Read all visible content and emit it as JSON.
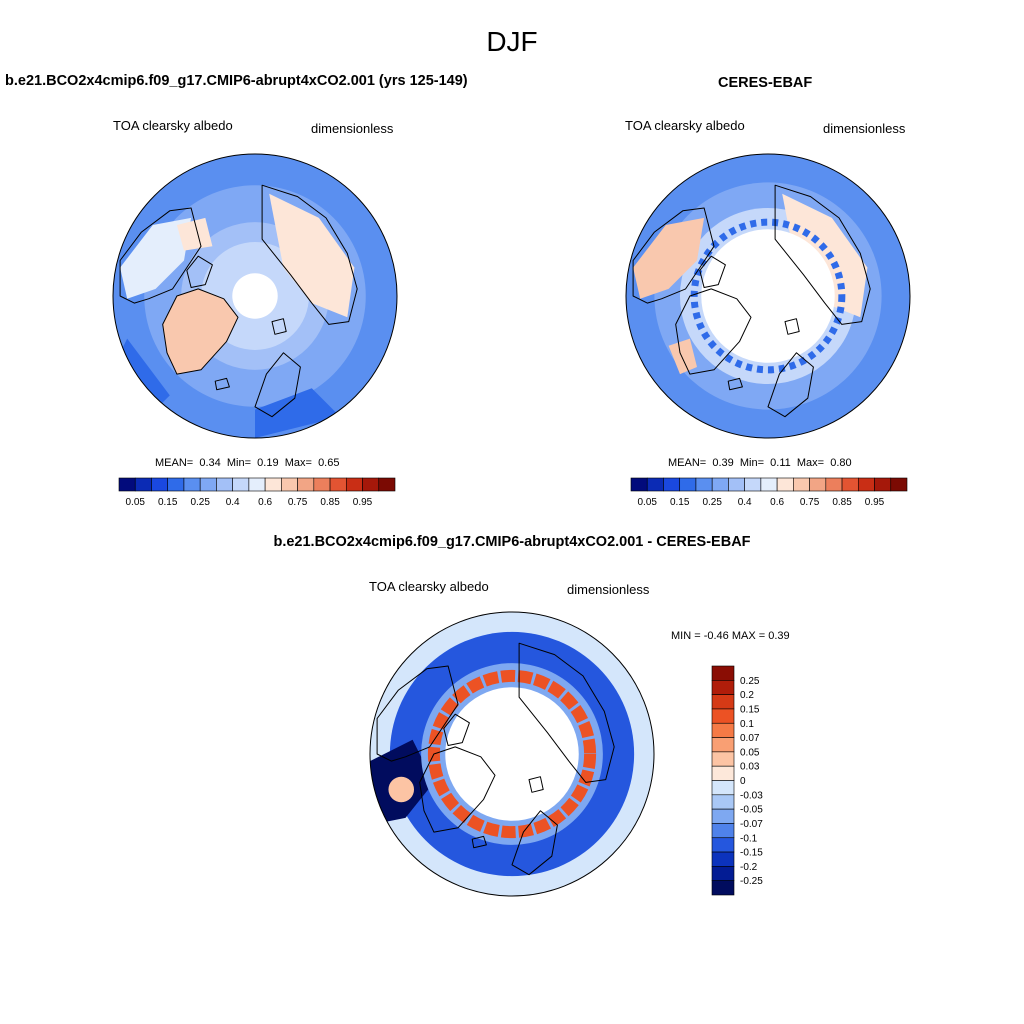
{
  "season": "DJF",
  "panels": [
    {
      "id": "model",
      "title": "b.e21.BCO2x4cmip6.f09_g17.CMIP6-abrupt4xCO2.001 (yrs 125-149)",
      "left_label": "TOA clearsky albedo",
      "right_label": "dimensionless",
      "stats": {
        "mean_label": "MEAN=",
        "mean": "0.34",
        "min_label": "Min=",
        "min": "0.19",
        "max_label": "Max=",
        "max": "0.65"
      }
    },
    {
      "id": "obs",
      "title": "CERES-EBAF",
      "left_label": "TOA clearsky albedo",
      "right_label": "dimensionless",
      "stats": {
        "mean_label": "MEAN=",
        "mean": "0.39",
        "min_label": "Min=",
        "min": "0.11",
        "max_label": "Max=",
        "max": "0.80"
      }
    },
    {
      "id": "diff",
      "title": "b.e21.BCO2x4cmip6.f09_g17.CMIP6-abrupt4xCO2.001 - CERES-EBAF",
      "left_label": "TOA clearsky albedo",
      "right_label": "dimensionless",
      "minmax": "MIN =  -0.46 MAX =   0.39"
    }
  ],
  "chart_data": [
    {
      "type": "heatmap",
      "projection": "north polar stereographic",
      "title": "b.e21.BCO2x4cmip6.f09_g17.CMIP6-abrupt4xCO2.001 (yrs 125-149)",
      "variable": "TOA clearsky albedo",
      "units": "dimensionless",
      "mean": 0.34,
      "min": 0.19,
      "max": 0.65,
      "colorbar_ticks": [
        "0.05",
        "0.15",
        "0.25",
        "0.4",
        "0.6",
        "0.75",
        "0.85",
        "0.95"
      ],
      "colorbar_levels": [
        0.05,
        0.1,
        0.15,
        0.2,
        0.25,
        0.3,
        0.35,
        0.4,
        0.5,
        0.6,
        0.65,
        0.7,
        0.75,
        0.8,
        0.85,
        0.9,
        0.95
      ]
    },
    {
      "type": "heatmap",
      "projection": "north polar stereographic",
      "title": "CERES-EBAF",
      "variable": "TOA clearsky albedo",
      "units": "dimensionless",
      "mean": 0.39,
      "min": 0.11,
      "max": 0.8,
      "colorbar_ticks": [
        "0.05",
        "0.15",
        "0.25",
        "0.4",
        "0.6",
        "0.75",
        "0.85",
        "0.95"
      ],
      "colorbar_levels": [
        0.05,
        0.1,
        0.15,
        0.2,
        0.25,
        0.3,
        0.35,
        0.4,
        0.5,
        0.6,
        0.65,
        0.7,
        0.75,
        0.8,
        0.85,
        0.9,
        0.95
      ]
    },
    {
      "type": "heatmap",
      "projection": "north polar stereographic",
      "title": "b.e21.BCO2x4cmip6.f09_g17.CMIP6-abrupt4xCO2.001 - CERES-EBAF",
      "variable": "TOA clearsky albedo",
      "units": "dimensionless",
      "min": -0.46,
      "max": 0.39,
      "colorbar_ticks": [
        "0.25",
        "0.2",
        "0.15",
        "0.1",
        "0.07",
        "0.05",
        "0.03",
        "0",
        "-0.03",
        "-0.05",
        "-0.07",
        "-0.1",
        "-0.15",
        "-0.2",
        "-0.25"
      ]
    }
  ],
  "colors": {
    "seq": [
      "#020b7c",
      "#0b2bb5",
      "#1a48e0",
      "#2f6be9",
      "#5a8ff0",
      "#7fa8f4",
      "#a3c0f7",
      "#c5d8fa",
      "#e4eefc",
      "#fde6d8",
      "#f9c8ae",
      "#f2a585",
      "#ec7f5c",
      "#e35432",
      "#c92e15",
      "#a5180a",
      "#7b0a03"
    ],
    "diff": [
      "#8a0d04",
      "#b01d0a",
      "#d53a16",
      "#ec5224",
      "#f57a46",
      "#f99f73",
      "#fcc4a4",
      "#fde8da",
      "#d4e6fb",
      "#a9c8f6",
      "#7ea8f1",
      "#4f82ea",
      "#2557de",
      "#0c33bd",
      "#031c94",
      "#010c5e"
    ],
    "land_outline": "#000000",
    "missing": "#ffffff"
  }
}
